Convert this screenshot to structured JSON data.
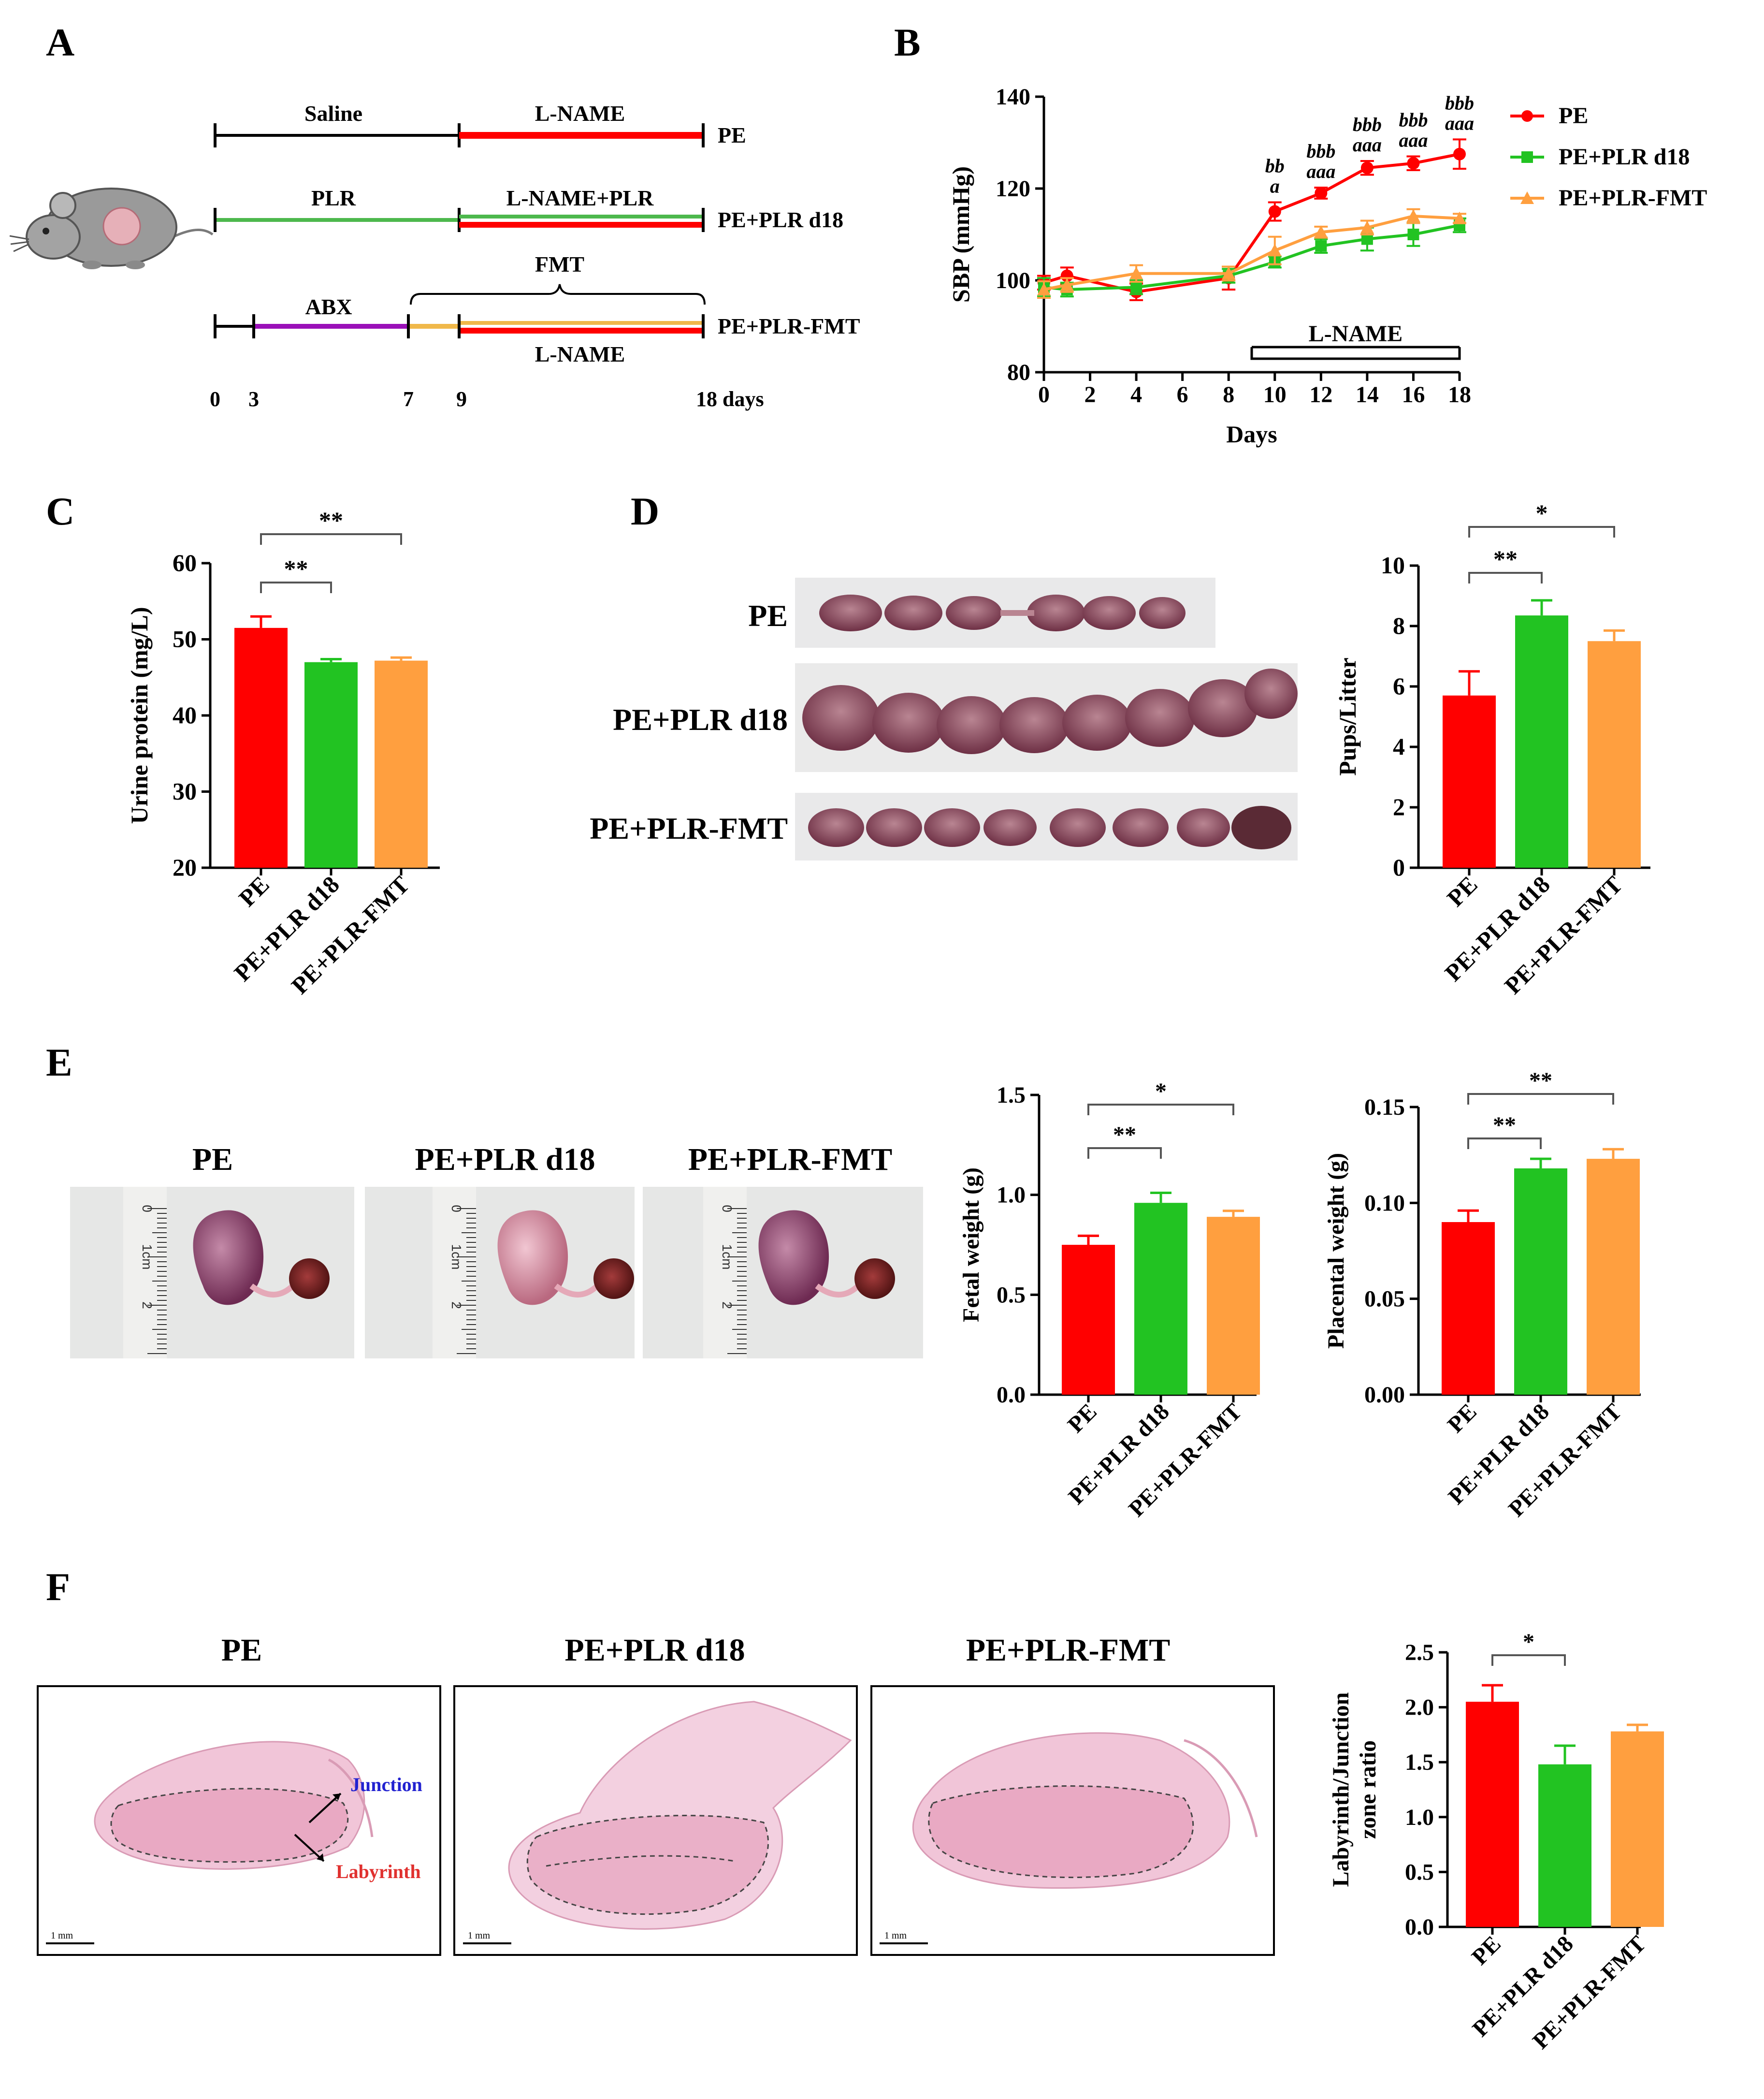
{
  "panels": {
    "A": "A",
    "B": "B",
    "C": "C",
    "D": "D",
    "E": "E",
    "F": "F"
  },
  "colors": {
    "pe": "#ff0000",
    "plr": "#22c322",
    "fmt": "#ff9f3f",
    "abx": "#9a10b8",
    "fmt_bar": "#f0b84a"
  },
  "panel_a": {
    "timeline_rows": [
      {
        "pre": "Saline",
        "post": "L-NAME",
        "group": "PE"
      },
      {
        "pre": "PLR",
        "post": "L-NAME+PLR",
        "group": "PE+PLR d18"
      },
      {
        "pre": "ABX",
        "fmt": "FMT",
        "post": "L-NAME",
        "group": "PE+PLR-FMT"
      }
    ],
    "day_ticks": [
      "0",
      "3",
      "7",
      "9",
      "18 days"
    ]
  },
  "chart_data": [
    {
      "id": "B",
      "type": "line",
      "xlabel": "Days",
      "ylabel": "SBP (mmHg)",
      "xlim": [
        0,
        18
      ],
      "ylim": [
        80,
        140
      ],
      "xticks": [
        "0",
        "2",
        "4",
        "6",
        "8",
        "10",
        "12",
        "14",
        "16",
        "18"
      ],
      "yticks": [
        "80",
        "100",
        "120",
        "140"
      ],
      "x": [
        0,
        1,
        4,
        8,
        10,
        12,
        14,
        16,
        18
      ],
      "series": [
        {
          "name": "PE",
          "values": [
            99.5,
            101,
            97.5,
            100.5,
            115,
            119,
            124.5,
            125.5,
            127.5
          ],
          "errors": [
            1.5,
            1.8,
            1.8,
            2.5,
            2.0,
            1.2,
            1.5,
            1.5,
            3.2
          ]
        },
        {
          "name": "PE+PLR d18",
          "values": [
            98.5,
            98,
            98.5,
            101,
            104,
            107.5,
            109,
            110,
            112
          ],
          "errors": [
            2.0,
            1.5,
            1.5,
            1.5,
            1.2,
            1.5,
            2.5,
            2.5,
            1.5
          ]
        },
        {
          "name": "PE+PLR-FMT",
          "values": [
            98,
            99,
            101.5,
            101.5,
            106.5,
            110.5,
            111.5,
            114,
            113.5
          ],
          "errors": [
            1.8,
            1.5,
            1.8,
            1.5,
            3.0,
            1.2,
            1.5,
            1.5,
            1.0
          ]
        }
      ],
      "annotations": [
        {
          "x": 10,
          "lines": [
            "bb",
            "a"
          ]
        },
        {
          "x": 12,
          "lines": [
            "bbb",
            "aaa"
          ]
        },
        {
          "x": 14,
          "lines": [
            "bbb",
            "aaa"
          ]
        },
        {
          "x": 16,
          "lines": [
            "bbb",
            "aaa"
          ]
        },
        {
          "x": 18,
          "lines": [
            "bbb",
            "aaa"
          ]
        }
      ],
      "bracket": {
        "label": "L-NAME",
        "from": 9,
        "to": 18
      }
    },
    {
      "id": "C",
      "type": "bar",
      "ylabel": "Urine protein (mg/L)",
      "categories": [
        "PE",
        "PE+PLR d18",
        "PE+PLR-FMT"
      ],
      "values": [
        51.5,
        47,
        47.2
      ],
      "errors": [
        1.5,
        0.4,
        0.4
      ],
      "ylim": [
        20,
        60
      ],
      "yticks": [
        "20",
        "30",
        "40",
        "50",
        "60"
      ],
      "significance": [
        {
          "from": 0,
          "to": 1,
          "label": "**"
        },
        {
          "from": 0,
          "to": 2,
          "label": "**"
        }
      ]
    },
    {
      "id": "D",
      "type": "bar",
      "ylabel": "Pups/Litter",
      "categories": [
        "PE",
        "PE+PLR d18",
        "PE+PLR-FMT"
      ],
      "values": [
        5.7,
        8.35,
        7.5
      ],
      "errors": [
        0.8,
        0.5,
        0.35
      ],
      "ylim": [
        0,
        10
      ],
      "yticks": [
        "0",
        "2",
        "4",
        "6",
        "8",
        "10"
      ],
      "significance": [
        {
          "from": 0,
          "to": 1,
          "label": "**"
        },
        {
          "from": 0,
          "to": 2,
          "label": "*"
        }
      ]
    },
    {
      "id": "E1",
      "type": "bar",
      "ylabel": "Fetal weight (g)",
      "categories": [
        "PE",
        "PE+PLR d18",
        "PE+PLR-FMT"
      ],
      "values": [
        0.75,
        0.96,
        0.89
      ],
      "errors": [
        0.045,
        0.05,
        0.03
      ],
      "ylim": [
        0,
        1.5
      ],
      "yticks": [
        "0.0",
        "0.5",
        "1.0",
        "1.5"
      ],
      "significance": [
        {
          "from": 0,
          "to": 1,
          "label": "**"
        },
        {
          "from": 0,
          "to": 2,
          "label": "*"
        }
      ]
    },
    {
      "id": "E2",
      "type": "bar",
      "ylabel": "Placental weight (g)",
      "categories": [
        "PE",
        "PE+PLR d18",
        "PE+PLR-FMT"
      ],
      "values": [
        0.09,
        0.118,
        0.123
      ],
      "errors": [
        0.006,
        0.005,
        0.005
      ],
      "ylim": [
        0,
        0.15
      ],
      "yticks": [
        "0.00",
        "0.05",
        "0.10",
        "0.15"
      ],
      "significance": [
        {
          "from": 0,
          "to": 1,
          "label": "**"
        },
        {
          "from": 0,
          "to": 2,
          "label": "**"
        }
      ]
    },
    {
      "id": "F",
      "type": "bar",
      "ylabel": [
        "Labyrinth/Junction",
        "zone ratio"
      ],
      "categories": [
        "PE",
        "PE+PLR d18",
        "PE+PLR-FMT"
      ],
      "values": [
        2.05,
        1.48,
        1.78
      ],
      "errors": [
        0.15,
        0.17,
        0.06
      ],
      "ylim": [
        0,
        2.5
      ],
      "yticks": [
        "0.0",
        "0.5",
        "1.0",
        "1.5",
        "2.0",
        "2.5"
      ],
      "significance": [
        {
          "from": 0,
          "to": 1,
          "label": "*"
        }
      ]
    }
  ],
  "panel_d": {
    "photo_labels": [
      "PE",
      "PE+PLR d18",
      "PE+PLR-FMT"
    ]
  },
  "panel_e": {
    "photo_titles": [
      "PE",
      "PE+PLR d18",
      "PE+PLR-FMT"
    ],
    "ruler_labels": [
      "0",
      "1cm",
      "2"
    ]
  },
  "panel_f": {
    "photo_titles": [
      "PE",
      "PE+PLR d18",
      "PE+PLR-FMT"
    ],
    "junction": "Junction",
    "labyrinth": "Labyrinth",
    "scale": "1 mm"
  }
}
